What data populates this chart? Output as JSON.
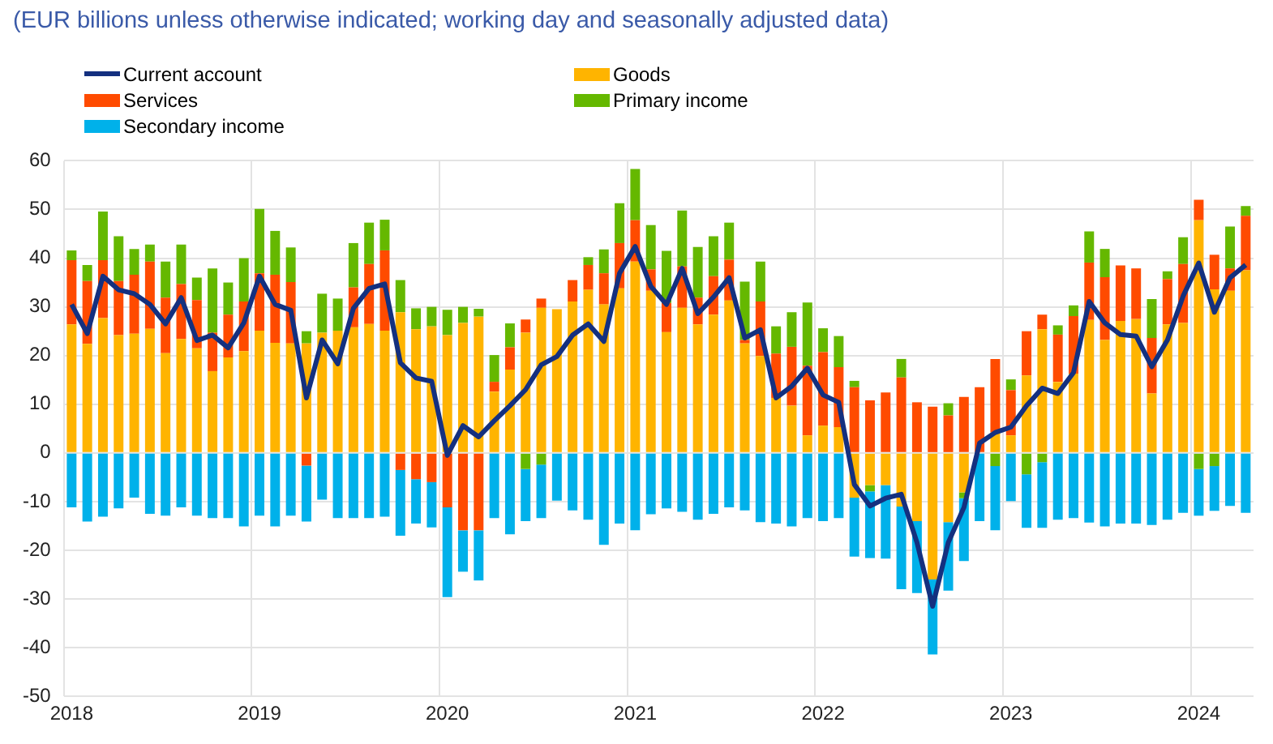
{
  "chart_data": {
    "type": "bar",
    "title": "(EUR billions unless otherwise indicated; working day and seasonally adjusted data)",
    "categories": [
      "2018",
      null,
      null,
      null,
      null,
      null,
      null,
      null,
      null,
      null,
      null,
      null,
      "2019",
      null,
      null,
      null,
      null,
      null,
      null,
      null,
      null,
      null,
      null,
      null,
      "2020",
      null,
      null,
      null,
      null,
      null,
      null,
      null,
      null,
      null,
      null,
      null,
      "2021",
      null,
      null,
      null,
      null,
      null,
      null,
      null,
      null,
      null,
      null,
      null,
      "2022",
      null,
      null,
      null,
      null,
      null,
      null,
      null,
      null,
      null,
      null,
      null,
      "2023",
      null,
      null,
      null,
      null,
      null,
      null,
      null,
      null,
      null,
      null,
      null,
      "2024",
      null,
      null,
      null
    ],
    "series": [
      {
        "name": "Current account",
        "type": "line",
        "color": "#14307f",
        "values": [
          30.5,
          24.5,
          36.3,
          33.5,
          32.7,
          30.5,
          26.5,
          31.9,
          23.1,
          24.2,
          21.6,
          26.7,
          36.3,
          30.5,
          29.3,
          11.3,
          23.2,
          18.3,
          29.7,
          33.8,
          34.7,
          18.5,
          15.4,
          14.7,
          -0.5,
          5.6,
          3.3,
          6.6,
          9.7,
          13.0,
          18.1,
          19.8,
          24.2,
          26.5,
          22.9,
          36.9,
          42.4,
          34.2,
          30.5,
          37.9,
          28.6,
          32.0,
          36.0,
          23.6,
          25.3,
          11.3,
          13.7,
          17.4,
          11.9,
          10.4,
          -6.5,
          -10.9,
          -9.3,
          -8.5,
          -18.4,
          -31.5,
          -18.4,
          -11.2,
          2.0,
          4.2,
          5.3,
          9.7,
          13.3,
          12.2,
          16.5,
          31.1,
          26.7,
          24.3,
          24.0,
          17.7,
          23.2,
          32.2,
          39.0,
          28.9,
          36.0,
          38.6
        ]
      },
      {
        "name": "Goods",
        "color": "#ffb400",
        "values": [
          26.4,
          22.4,
          27.7,
          24.2,
          24.5,
          25.5,
          20.5,
          23.4,
          21.5,
          16.8,
          19.6,
          20.9,
          25.1,
          22.6,
          22.5,
          22.5,
          24.7,
          25.1,
          25.8,
          26.5,
          25.1,
          28.9,
          25.4,
          26.0,
          24.2,
          26.7,
          28.0,
          12.6,
          17.1,
          24.7,
          29.8,
          29.5,
          31.1,
          33.5,
          30.5,
          33.8,
          39.3,
          33.3,
          24.8,
          29.8,
          26.4,
          28.4,
          31.3,
          22.5,
          19.9,
          11.3,
          9.7,
          3.6,
          5.6,
          5.3,
          -9.2,
          -6.6,
          -6.6,
          -11.0,
          -14.0,
          -26.0,
          -14.2,
          -8.1,
          null,
          4.2,
          3.6,
          15.9,
          25.4,
          14.6,
          16.3,
          27.3,
          23.2,
          27.1,
          27.5,
          12.2,
          26.4,
          26.7,
          47.8,
          33.6,
          33.3,
          37.5
        ]
      },
      {
        "name": "Services",
        "color": "#ff4b00",
        "values": [
          13.2,
          12.9,
          11.9,
          11.1,
          12.1,
          13.8,
          11.4,
          11.3,
          9.9,
          7.9,
          8.8,
          10.2,
          11.8,
          14.0,
          12.6,
          -2.6,
          null,
          null,
          8.2,
          12.3,
          16.5,
          -3.5,
          -5.4,
          -6.0,
          -11.2,
          -15.9,
          -15.9,
          2.0,
          4.6,
          2.7,
          1.9,
          null,
          4.4,
          5.1,
          6.4,
          9.3,
          8.5,
          4.4,
          6.0,
          8.5,
          5.5,
          7.9,
          8.4,
          0.7,
          11.2,
          9.1,
          12.1,
          14.3,
          15.1,
          12.3,
          13.5,
          10.8,
          12.4,
          15.5,
          10.4,
          9.5,
          7.7,
          11.5,
          13.5,
          15.1,
          9.3,
          9.1,
          3.0,
          9.7,
          11.8,
          11.8,
          12.9,
          11.4,
          10.4,
          11.4,
          9.3,
          12.1,
          4.2,
          7.1,
          4.6,
          11.2
        ]
      },
      {
        "name": "Primary income",
        "color": "#65b800",
        "values": [
          2.0,
          3.3,
          10.0,
          9.2,
          5.3,
          3.5,
          7.4,
          8.1,
          4.6,
          13.2,
          6.6,
          8.9,
          13.2,
          9.0,
          7.1,
          2.5,
          8.0,
          6.6,
          9.1,
          8.5,
          6.3,
          6.6,
          4.3,
          4.0,
          5.2,
          3.3,
          1.6,
          5.5,
          4.9,
          -3.3,
          -2.4,
          null,
          null,
          1.6,
          4.9,
          8.2,
          10.5,
          9.1,
          10.7,
          11.5,
          10.4,
          8.2,
          7.6,
          12.0,
          8.2,
          5.6,
          7.1,
          13.0,
          4.9,
          6.4,
          1.3,
          -1.3,
          null,
          3.8,
          null,
          null,
          2.5,
          -1.2,
          null,
          -2.7,
          2.2,
          -4.4,
          -1.9,
          1.9,
          2.2,
          6.4,
          5.8,
          null,
          null,
          8.0,
          1.6,
          5.5,
          -3.3,
          -2.7,
          8.6,
          2.0
        ]
      },
      {
        "name": "Secondary income",
        "color": "#00b1ea",
        "values": [
          -11.2,
          -14.1,
          -13.1,
          -11.4,
          -9.2,
          -12.5,
          -12.9,
          -11.2,
          -12.9,
          -13.4,
          -13.4,
          -15.1,
          -12.9,
          -15.1,
          -12.9,
          -11.5,
          -9.6,
          -13.4,
          -13.4,
          -13.4,
          -13.1,
          -13.5,
          -9.1,
          -9.3,
          -18.4,
          -8.5,
          -10.3,
          -13.4,
          -16.7,
          -10.7,
          -11.0,
          -9.8,
          -11.8,
          -13.7,
          -18.9,
          -14.5,
          -15.9,
          -12.6,
          -11.4,
          -12.1,
          -13.7,
          -12.5,
          -11.2,
          -11.8,
          -14.2,
          -14.5,
          -15.1,
          -13.4,
          -14.0,
          -13.4,
          -12.1,
          -13.7,
          -15.1,
          -17.0,
          -14.8,
          -15.4,
          -14.1,
          -12.9,
          -14.0,
          -13.2,
          -9.9,
          -11.0,
          -13.5,
          -13.7,
          -13.4,
          -14.3,
          -15.1,
          -14.5,
          -14.5,
          -14.8,
          -13.7,
          -12.3,
          -9.6,
          -9.2,
          -10.9,
          -12.3
        ]
      }
    ],
    "stacked": true,
    "marker": "none",
    "ylim": [
      -50,
      60
    ],
    "yticks": [
      -50,
      -40,
      -30,
      -20,
      -10,
      0,
      10,
      20,
      30,
      40,
      50,
      60
    ],
    "grid": true,
    "legend": "top left"
  }
}
